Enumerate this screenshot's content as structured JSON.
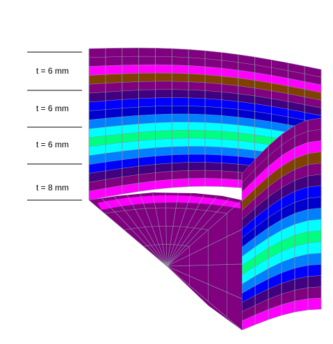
{
  "labels": [
    {
      "text": "t = 6 mm"
    },
    {
      "text": "t = 6 mm"
    },
    {
      "text": "t = 6 mm"
    },
    {
      "text": "t =  8 mm"
    }
  ],
  "colors": {
    "background": "#ffffff",
    "mesh_lines": "#8a8fa0",
    "band_stack_top_to_bottom": [
      "#800080",
      "#800080",
      "#ff00ff",
      "#804000",
      "#800080",
      "#400080",
      "#0000ff",
      "#0000cc",
      "#0080ff",
      "#00ffff",
      "#00ff80",
      "#00ffff",
      "#0080ff",
      "#0000ff",
      "#400080",
      "#800080",
      "#ff00ff"
    ],
    "base_plate": "#800080",
    "inner_floor_edge": "#ff00ff"
  }
}
